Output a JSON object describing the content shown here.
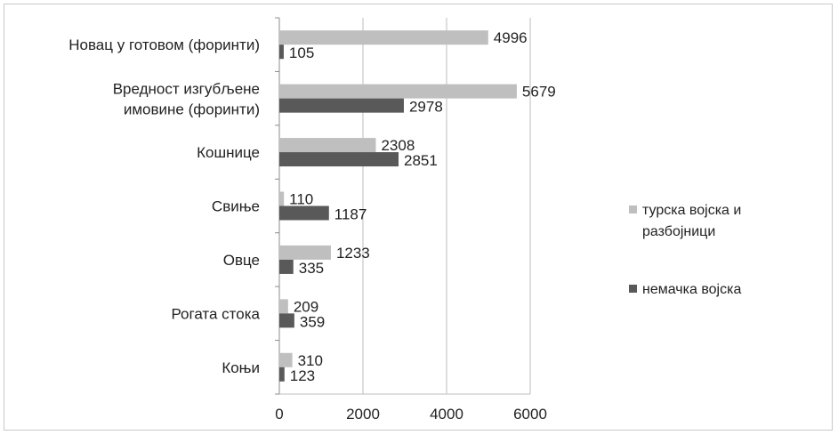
{
  "chart_data": {
    "type": "bar",
    "orientation": "horizontal",
    "categories": [
      "Новац у готовом (форинти)",
      "Вредност изгубљене имовине (форинти)",
      "Кошнице",
      "Свиње",
      "Овце",
      "Рогата стока",
      "Коњи"
    ],
    "series": [
      {
        "name": "турска војска и разбојници",
        "color": "#bfbfbf",
        "values": [
          4996,
          5679,
          2308,
          110,
          1233,
          209,
          310
        ]
      },
      {
        "name": "немачка војска",
        "color": "#595959",
        "values": [
          105,
          2978,
          2851,
          1187,
          335,
          359,
          123
        ]
      }
    ],
    "xlim": [
      0,
      6000
    ],
    "xticks": [
      0,
      2000,
      4000,
      6000
    ],
    "grid": true,
    "legend": "right",
    "title": "",
    "xlabel": "",
    "ylabel": ""
  }
}
